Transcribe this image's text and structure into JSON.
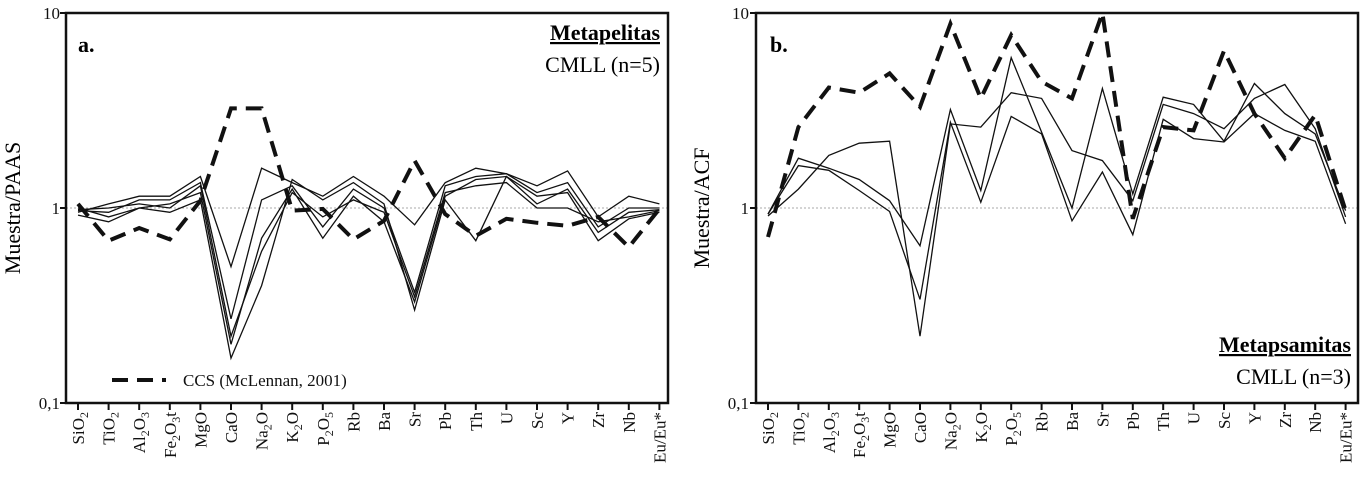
{
  "chart_data": [
    {
      "type": "line",
      "panel_label": "a.",
      "title": "Metapelitas",
      "subtitle": "CMLL (n=5)",
      "ylabel": "Muestra/PAAS",
      "yscale": "log",
      "ylim": [
        0.1,
        10
      ],
      "yticks": [
        "10",
        "1",
        "0,1"
      ],
      "reference_line": 1,
      "categories": [
        "SiO2",
        "TiO2",
        "Al2O3",
        "Fe2O3t",
        "MgO",
        "CaO",
        "Na2O",
        "K2O",
        "P2O5",
        "Rb",
        "Ba",
        "Sr",
        "Pb",
        "Th",
        "U",
        "Sc",
        "Y",
        "Zr",
        "Nb",
        "Eu/Eu*"
      ],
      "legend": {
        "label": "CCS (McLennan, 2001)",
        "placement": "bottom-left"
      },
      "reference_series": {
        "name": "CCS (McLennan, 2001)",
        "style": "dashed",
        "values": [
          1.05,
          0.68,
          0.79,
          0.69,
          1.09,
          3.24,
          3.24,
          0.97,
          0.99,
          0.69,
          0.86,
          1.75,
          0.93,
          0.72,
          0.88,
          0.84,
          0.81,
          0.9,
          0.63,
          0.99
        ]
      },
      "series": [
        {
          "values": [
            0.95,
            1.05,
            1.15,
            1.15,
            1.45,
            0.5,
            1.6,
            1.35,
            1.15,
            1.45,
            1.15,
            0.82,
            1.35,
            1.6,
            1.5,
            1.3,
            1.55,
            0.9,
            1.15,
            1.05
          ]
        },
        {
          "values": [
            0.97,
            0.95,
            1.1,
            1.1,
            1.35,
            0.27,
            1.1,
            1.3,
            0.8,
            1.25,
            1.0,
            0.37,
            1.3,
            1.45,
            1.5,
            1.2,
            1.35,
            0.8,
            1.0,
            1.0
          ]
        },
        {
          "values": [
            1.0,
            0.9,
            1.0,
            1.05,
            1.2,
            0.2,
            0.7,
            1.25,
            0.7,
            1.15,
            0.85,
            0.33,
            1.15,
            1.4,
            1.45,
            1.05,
            1.25,
            0.75,
            0.95,
            0.98
          ]
        },
        {
          "values": [
            0.92,
            0.85,
            1.0,
            0.95,
            1.1,
            0.17,
            0.4,
            1.4,
            1.1,
            1.35,
            1.05,
            0.3,
            1.1,
            0.68,
            1.45,
            1.15,
            1.2,
            0.68,
            0.88,
            0.95
          ]
        },
        {
          "values": [
            0.98,
            1.0,
            1.05,
            1.0,
            1.3,
            0.22,
            0.6,
            1.2,
            0.9,
            1.1,
            0.95,
            0.35,
            1.2,
            1.3,
            1.35,
            1.0,
            1.0,
            0.85,
            0.9,
            0.97
          ]
        }
      ]
    },
    {
      "type": "line",
      "panel_label": "b.",
      "title": "Metapsamitas",
      "subtitle": "CMLL (n=3)",
      "ylabel": "Muestra/ACF",
      "yscale": "log",
      "ylim": [
        0.1,
        10
      ],
      "yticks": [
        "10",
        "1",
        "0,1"
      ],
      "reference_line": 1,
      "categories": [
        "SiO2",
        "TiO2",
        "Al2O3",
        "Fe2O3t",
        "MgO",
        "CaO",
        "Na2O",
        "K2O",
        "P2O5",
        "Rb",
        "Ba",
        "Sr",
        "Pb",
        "Th",
        "U",
        "Sc",
        "Y",
        "Zr",
        "Nb",
        "Eu/Eu*"
      ],
      "reference_series": {
        "name": "CCS (McLennan, 2001)",
        "style": "dashed",
        "values": [
          0.71,
          2.6,
          4.15,
          3.9,
          4.9,
          3.3,
          8.8,
          3.65,
          7.7,
          4.45,
          3.65,
          10,
          0.88,
          2.6,
          2.5,
          6.4,
          3.05,
          1.8,
          3.0,
          0.97
        ]
      },
      "series": [
        {
          "values": [
            0.93,
            1.8,
            1.6,
            1.4,
            1.09,
            0.64,
            3.2,
            1.23,
            5.9,
            2.45,
            1.0,
            4.1,
            1.18,
            3.7,
            3.4,
            2.2,
            4.35,
            3.05,
            2.4,
            0.97
          ]
        },
        {
          "values": [
            0.93,
            1.65,
            1.56,
            1.23,
            0.96,
            0.34,
            2.75,
            1.07,
            2.95,
            2.4,
            0.86,
            1.53,
            0.73,
            2.85,
            2.27,
            2.18,
            3.05,
            2.5,
            2.2,
            0.83
          ]
        },
        {
          "values": [
            0.91,
            1.25,
            1.86,
            2.15,
            2.2,
            0.22,
            2.7,
            2.6,
            3.9,
            3.65,
            1.97,
            1.75,
            1.09,
            3.4,
            3.05,
            2.55,
            3.65,
            4.3,
            2.55,
            0.9
          ]
        }
      ]
    }
  ]
}
